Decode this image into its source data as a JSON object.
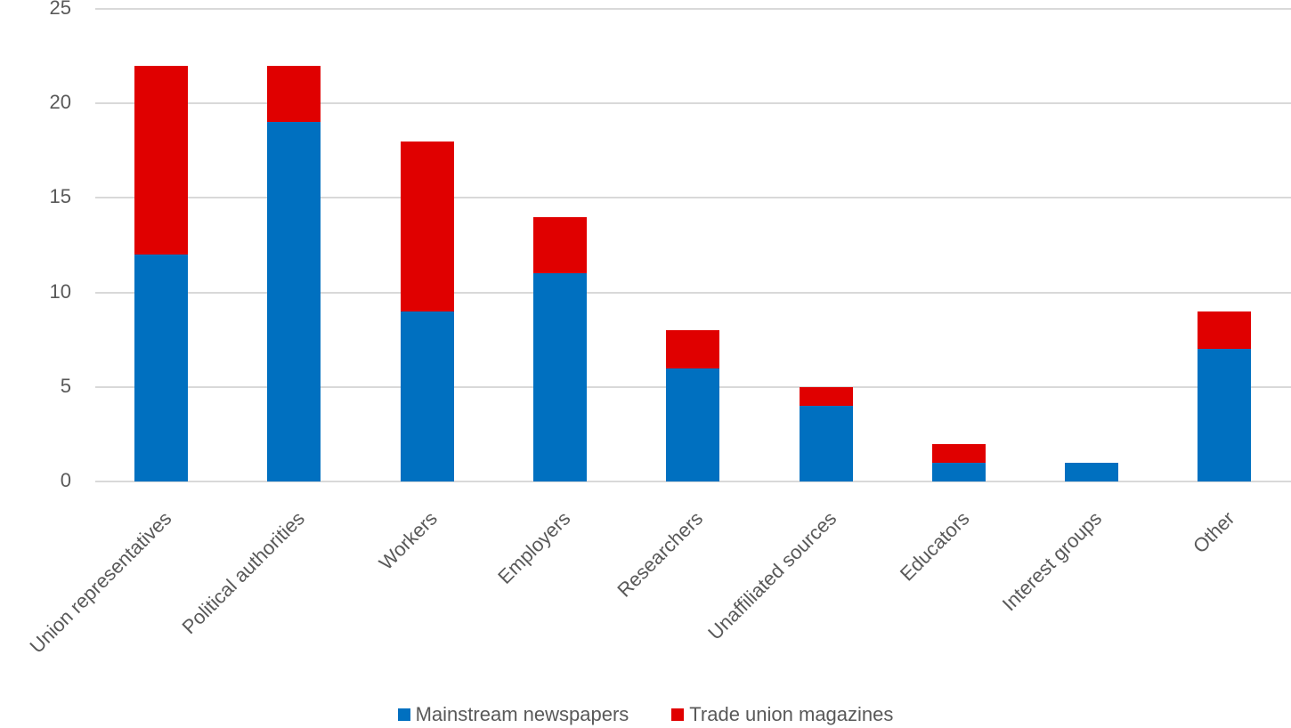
{
  "chart_data": {
    "type": "bar",
    "stacked": true,
    "title": "",
    "xlabel": "",
    "ylabel": "",
    "ylim": [
      0,
      25
    ],
    "yticks": [
      0,
      5,
      10,
      15,
      20,
      25
    ],
    "grid": true,
    "legend_position": "bottom",
    "categories": [
      "Union representatives",
      "Political authorities",
      "Workers",
      "Employers",
      "Researchers",
      "Unaffiliated sources",
      "Educators",
      "Interest groups",
      "Other"
    ],
    "series": [
      {
        "name": "Mainstream newspapers",
        "color": "#0070c0",
        "values": [
          12,
          19,
          9,
          11,
          6,
          4,
          1,
          1,
          7
        ]
      },
      {
        "name": "Trade union magazines",
        "color": "#e00000",
        "values": [
          10,
          3,
          9,
          3,
          2,
          1,
          1,
          0,
          2
        ]
      }
    ]
  },
  "legend": {
    "items": [
      {
        "label": "Mainstream newspapers",
        "color": "#0070c0"
      },
      {
        "label": "Trade union magazines",
        "color": "#e00000"
      }
    ]
  }
}
